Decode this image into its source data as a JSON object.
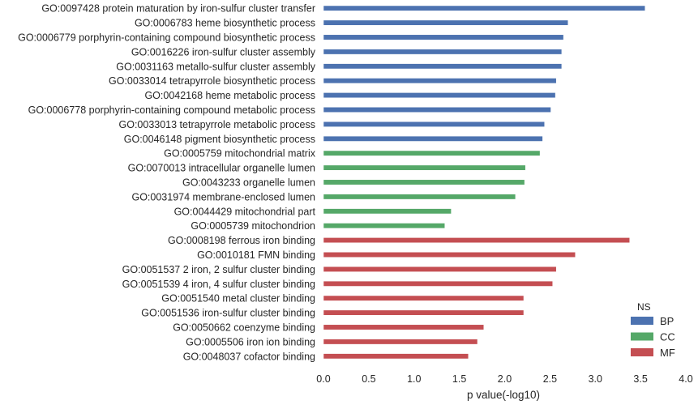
{
  "chart_data": {
    "type": "bar",
    "orientation": "horizontal",
    "title": "",
    "xlabel": "p value(-log10)",
    "ylabel": "",
    "xlim": [
      0,
      4.0
    ],
    "xticks": [
      "0.0",
      "0.5",
      "1.0",
      "1.5",
      "2.0",
      "2.5",
      "3.0",
      "3.5",
      "4.0"
    ],
    "grid": false,
    "legend": {
      "title": "NS",
      "placement": "bottom-right",
      "entries": [
        {
          "label": "BP",
          "color": "#4c72b0"
        },
        {
          "label": "CC",
          "color": "#55a868"
        },
        {
          "label": "MF",
          "color": "#c44e52"
        }
      ]
    },
    "series": [
      {
        "name": "BP",
        "color": "#4c72b0"
      },
      {
        "name": "CC",
        "color": "#55a868"
      },
      {
        "name": "MF",
        "color": "#c44e52"
      }
    ],
    "categories": [
      {
        "label": "GO:0097428 protein maturation by iron-sulfur cluster transfer",
        "ns": "BP",
        "value": 3.55
      },
      {
        "label": "GO:0006783 heme biosynthetic process",
        "ns": "BP",
        "value": 2.7
      },
      {
        "label": "GO:0006779 porphyrin-containing compound biosynthetic process",
        "ns": "BP",
        "value": 2.65
      },
      {
        "label": "GO:0016226 iron-sulfur cluster assembly",
        "ns": "BP",
        "value": 2.63
      },
      {
        "label": "GO:0031163 metallo-sulfur cluster assembly",
        "ns": "BP",
        "value": 2.63
      },
      {
        "label": "GO:0033014 tetrapyrrole biosynthetic process",
        "ns": "BP",
        "value": 2.57
      },
      {
        "label": "GO:0042168 heme metabolic process",
        "ns": "BP",
        "value": 2.56
      },
      {
        "label": "GO:0006778 porphyrin-containing compound metabolic process",
        "ns": "BP",
        "value": 2.51
      },
      {
        "label": "GO:0033013 tetrapyrrole metabolic process",
        "ns": "BP",
        "value": 2.44
      },
      {
        "label": "GO:0046148 pigment biosynthetic process",
        "ns": "BP",
        "value": 2.42
      },
      {
        "label": "GO:0005759 mitochondrial matrix",
        "ns": "CC",
        "value": 2.39
      },
      {
        "label": "GO:0070013 intracellular organelle lumen",
        "ns": "CC",
        "value": 2.23
      },
      {
        "label": "GO:0043233 organelle lumen",
        "ns": "CC",
        "value": 2.22
      },
      {
        "label": "GO:0031974 membrane-enclosed lumen",
        "ns": "CC",
        "value": 2.12
      },
      {
        "label": "GO:0044429 mitochondrial part",
        "ns": "CC",
        "value": 1.41
      },
      {
        "label": "GO:0005739 mitochondrion",
        "ns": "CC",
        "value": 1.34
      },
      {
        "label": "GO:0008198 ferrous iron binding",
        "ns": "MF",
        "value": 3.38
      },
      {
        "label": "GO:0010181 FMN binding",
        "ns": "MF",
        "value": 2.78
      },
      {
        "label": "GO:0051537 2 iron, 2 sulfur cluster binding",
        "ns": "MF",
        "value": 2.57
      },
      {
        "label": "GO:0051539 4 iron, 4 sulfur cluster binding",
        "ns": "MF",
        "value": 2.53
      },
      {
        "label": "GO:0051540 metal cluster binding",
        "ns": "MF",
        "value": 2.21
      },
      {
        "label": "GO:0051536 iron-sulfur cluster binding",
        "ns": "MF",
        "value": 2.21
      },
      {
        "label": "GO:0050662 coenzyme binding",
        "ns": "MF",
        "value": 1.77
      },
      {
        "label": "GO:0005506 iron ion binding",
        "ns": "MF",
        "value": 1.7
      },
      {
        "label": "GO:0048037 cofactor binding",
        "ns": "MF",
        "value": 1.6
      }
    ]
  }
}
